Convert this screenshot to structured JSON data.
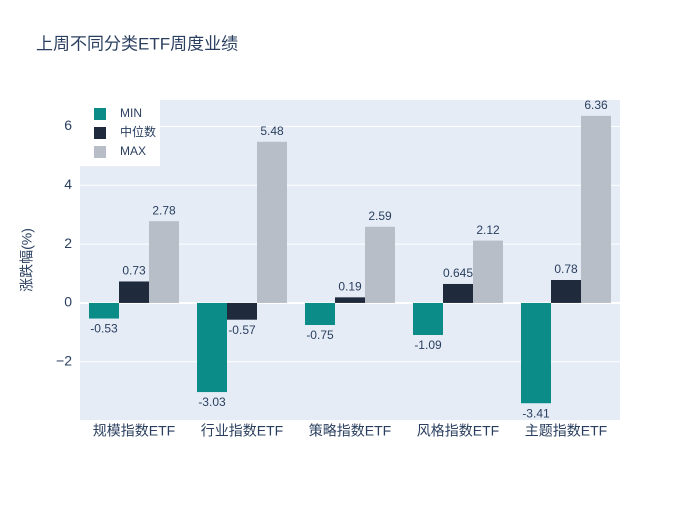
{
  "chart_data": {
    "type": "bar",
    "title": "上周不同分类ETF周度业绩",
    "y_label": "涨跌幅(%)",
    "categories": [
      "规模指数ETF",
      "行业指数ETF",
      "策略指数ETF",
      "风格指数ETF",
      "主题指数ETF"
    ],
    "series": [
      {
        "name": "MIN",
        "color": "#0b8c88",
        "values": [
          -0.53,
          -3.03,
          -0.75,
          -1.09,
          -3.41
        ]
      },
      {
        "name": "中位数",
        "color": "#1f2b3d",
        "values": [
          0.73,
          -0.57,
          0.19,
          0.645,
          0.78
        ]
      },
      {
        "name": "MAX",
        "color": "#b8bec7",
        "values": [
          2.78,
          5.48,
          2.59,
          2.12,
          6.36
        ]
      }
    ],
    "ylim": [
      -3.98,
      6.9
    ],
    "yticks": [
      {
        "value": -2,
        "label": "−2"
      },
      0,
      2,
      4,
      6
    ],
    "grid": true,
    "legend": "top-left"
  }
}
